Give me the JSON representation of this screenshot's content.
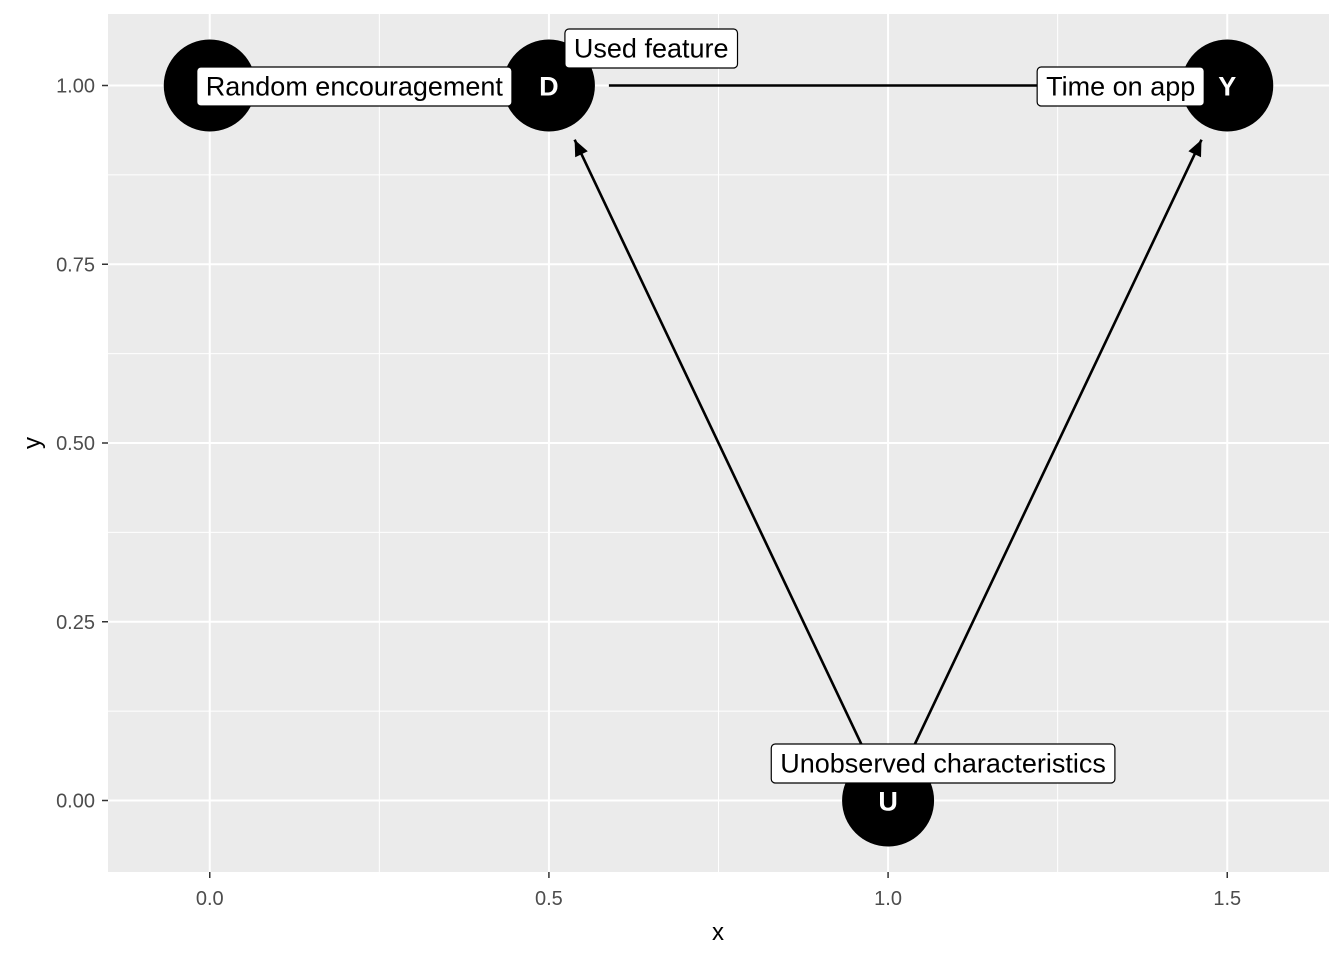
{
  "axes": {
    "x_title": "x",
    "y_title": "y",
    "x_range": [
      -0.15,
      1.65
    ],
    "y_range": [
      -0.1,
      1.1
    ],
    "x_ticks": [
      {
        "value": 0.0,
        "label": "0.0"
      },
      {
        "value": 0.5,
        "label": "0.5"
      },
      {
        "value": 1.0,
        "label": "1.0"
      },
      {
        "value": 1.5,
        "label": "1.5"
      }
    ],
    "y_ticks": [
      {
        "value": 0.0,
        "label": "0.00"
      },
      {
        "value": 0.25,
        "label": "0.25"
      },
      {
        "value": 0.5,
        "label": "0.50"
      },
      {
        "value": 0.75,
        "label": "0.75"
      },
      {
        "value": 1.0,
        "label": "1.00"
      }
    ],
    "x_minor": [
      0.25,
      0.75,
      1.25
    ],
    "y_minor": [
      0.125,
      0.375,
      0.625,
      0.875
    ],
    "grid": true
  },
  "colors": {
    "panel": "#ebebeb",
    "grid": "#ffffff",
    "node": "#000000",
    "node_text": "#ffffff",
    "edge": "#000000",
    "label_fill": "#ffffff",
    "label_border": "#000000"
  },
  "nodes": [
    {
      "id": "Z",
      "letter": "",
      "x": 0.0,
      "y": 1.0
    },
    {
      "id": "D",
      "letter": "D",
      "x": 0.5,
      "y": 1.0
    },
    {
      "id": "Y",
      "letter": "Y",
      "x": 1.5,
      "y": 1.0
    },
    {
      "id": "U",
      "letter": "U",
      "x": 1.0,
      "y": 0.0
    }
  ],
  "edges": [
    {
      "from": "D",
      "to": "Y",
      "arrow": false
    },
    {
      "from": "U",
      "to": "D",
      "arrow": true
    },
    {
      "from": "U",
      "to": "Y",
      "arrow": true
    }
  ],
  "labels": [
    {
      "node": "Z",
      "text": "Random encouragement"
    },
    {
      "node": "D",
      "text": "Used feature"
    },
    {
      "node": "Y",
      "text": "Time on app"
    },
    {
      "node": "U",
      "text": "Unobserved characteristics"
    }
  ]
}
